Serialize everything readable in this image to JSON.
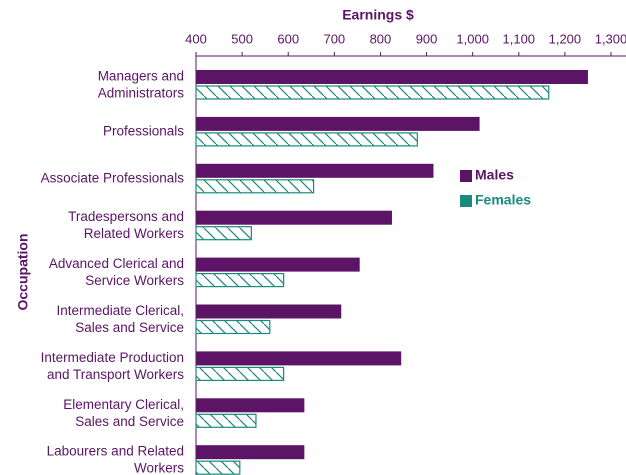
{
  "chart_data": {
    "type": "bar",
    "orientation": "horizontal",
    "title": "Earnings $",
    "y_label": "Occupation",
    "categories": [
      "Managers and\nAdministrators",
      "Professionals",
      "Associate Professionals",
      "Tradespersons and\nRelated Workers",
      "Advanced Clerical and\nService Workers",
      "Intermediate Clerical,\nSales and Service",
      "Intermediate Production\nand Transport Workers",
      "Elementary Clerical,\nSales and Service",
      "Labourers and Related\nWorkers"
    ],
    "series": [
      {
        "name": "Males",
        "color": "#5b1466",
        "values": [
          1250,
          1015,
          915,
          825,
          755,
          715,
          845,
          635,
          635
        ]
      },
      {
        "name": "Females",
        "color": "#1a8a7a",
        "hatch": true,
        "values": [
          1165,
          880,
          655,
          520,
          590,
          560,
          590,
          530,
          495
        ]
      }
    ],
    "xlim": [
      400,
      1300
    ],
    "xticks": [
      400,
      500,
      600,
      700,
      800,
      900,
      {
        "value": 1000,
        "label": "1,000"
      },
      {
        "value": 1100,
        "label": "1,100"
      },
      {
        "value": 1200,
        "label": "1,200"
      },
      {
        "value": 1300,
        "label": "1,300"
      }
    ],
    "legend": "right"
  }
}
